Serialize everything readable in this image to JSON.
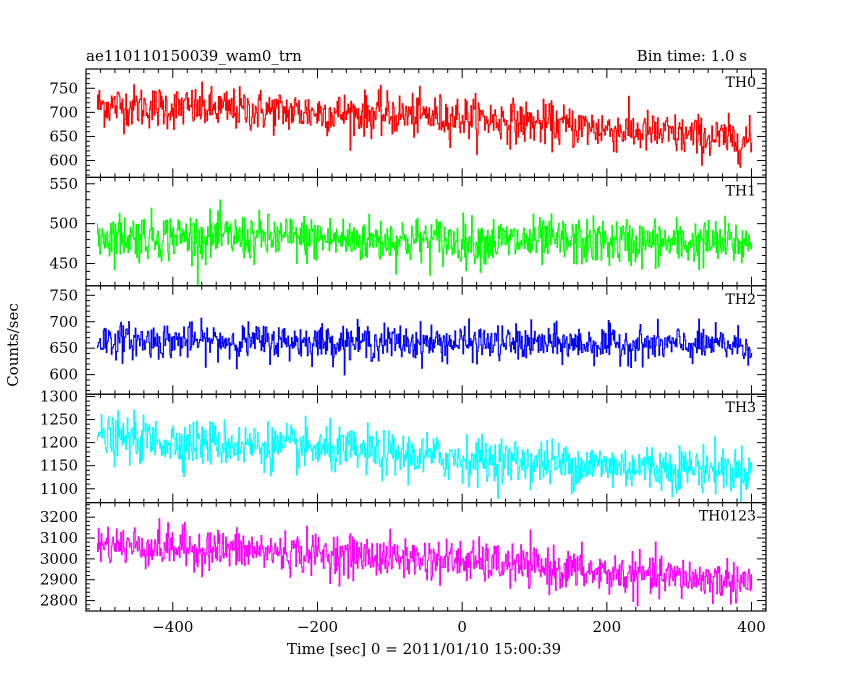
{
  "header": {
    "left_title": "ae110110150039_wam0_trn",
    "right_title": "Bin time: 1.0 s"
  },
  "chart_data": {
    "type": "line",
    "xlabel": "Time [sec] 0 = 2011/01/10 15:00:39",
    "ylabel": "Counts/sec",
    "xlim": [
      -520,
      420
    ],
    "x_ticks": [
      -400,
      -200,
      0,
      200,
      400
    ],
    "x_tick_labels": [
      "−400",
      "−200",
      "0",
      "200",
      "400"
    ],
    "data_x_range": [
      -505,
      400
    ],
    "bin_time_s": 1.0,
    "panels": [
      {
        "name": "TH0",
        "color": "#ff0000",
        "ylim": [
          565,
          790
        ],
        "y_ticks": [
          600,
          650,
          700,
          750
        ],
        "trend": [
          [
            -505,
            715
          ],
          [
            -300,
            705
          ],
          [
            0,
            690
          ],
          [
            200,
            665
          ],
          [
            400,
            640
          ]
        ],
        "noise_amplitude": 40
      },
      {
        "name": "TH1",
        "color": "#00ff00",
        "ylim": [
          422,
          558
        ],
        "y_ticks": [
          450,
          500,
          550
        ],
        "trend": [
          [
            -505,
            485
          ],
          [
            0,
            478
          ],
          [
            400,
            475
          ]
        ],
        "noise_amplitude": 27
      },
      {
        "name": "TH2",
        "color": "#0000ff",
        "ylim": [
          563,
          768
        ],
        "y_ticks": [
          600,
          650,
          700,
          750
        ],
        "trend": [
          [
            -505,
            665
          ],
          [
            0,
            660
          ],
          [
            400,
            655
          ]
        ],
        "noise_amplitude": 30
      },
      {
        "name": "TH3",
        "color": "#00ffff",
        "ylim": [
          1070,
          1305
        ],
        "y_ticks": [
          1100,
          1150,
          1200,
          1250,
          1300
        ],
        "trend": [
          [
            -505,
            1210
          ],
          [
            -300,
            1195
          ],
          [
            0,
            1165
          ],
          [
            200,
            1150
          ],
          [
            400,
            1140
          ]
        ],
        "noise_amplitude": 45
      },
      {
        "name": "TH0123",
        "color": "#ff00ff",
        "ylim": [
          2750,
          3270
        ],
        "y_ticks": [
          2800,
          2900,
          3000,
          3100,
          3200
        ],
        "trend": [
          [
            -505,
            3070
          ],
          [
            -300,
            3040
          ],
          [
            0,
            2990
          ],
          [
            200,
            2930
          ],
          [
            400,
            2890
          ]
        ],
        "noise_amplitude": 90
      }
    ]
  }
}
